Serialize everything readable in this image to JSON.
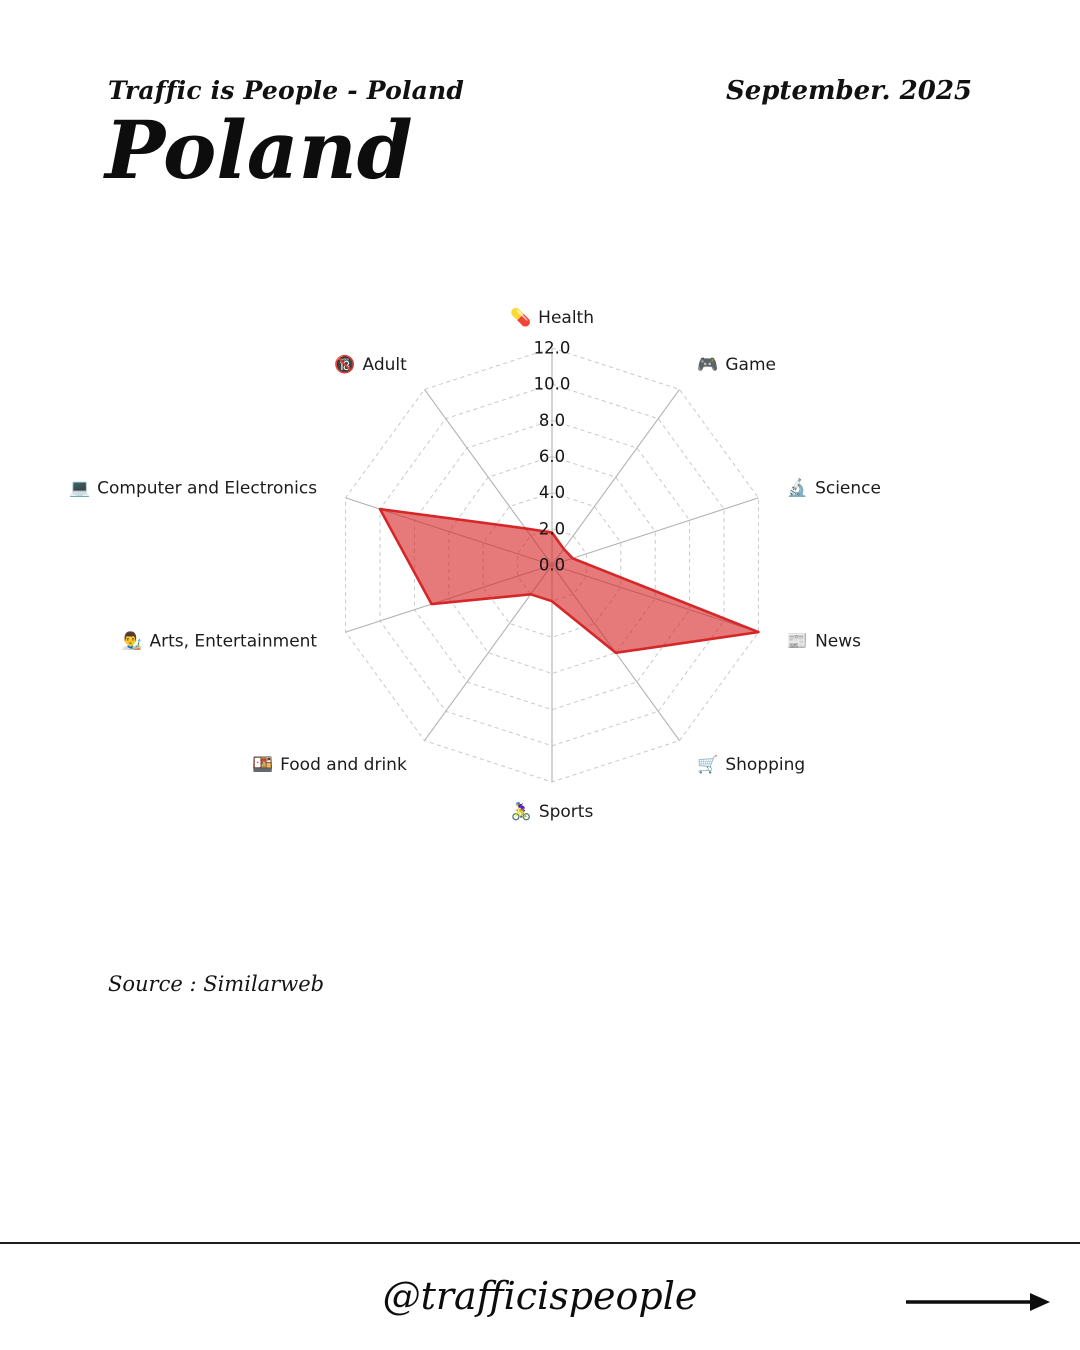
{
  "header": {
    "eyebrow": "Traffic is People - Poland",
    "date": "September. 2025",
    "title": "Poland"
  },
  "source_note": "Source : Similarweb",
  "footer": {
    "handle": "@trafficispeople",
    "arrow_icon_name": "right-arrow"
  },
  "chart_data": {
    "type": "radar",
    "title": "Traffic share by category, Poland",
    "axis_min": 0,
    "axis_max": 12,
    "tick_step": 2,
    "tick_labels": [
      "0.0",
      "2.0",
      "4.0",
      "6.0",
      "8.0",
      "10.0",
      "12.0"
    ],
    "grid": "dashed concentric decagon rings with solid gray spokes",
    "legend": "none",
    "fill_color": "#d62728",
    "fill_opacity": 0.62,
    "stroke_color": "#d62728",
    "categories": [
      {
        "icon": "💊",
        "label": "Health",
        "value": 1.8
      },
      {
        "icon": "🎮",
        "label": "Game",
        "value": 1.1
      },
      {
        "icon": "🔬",
        "label": "Science",
        "value": 1.2
      },
      {
        "icon": "📰",
        "label": "News",
        "value": 12.0
      },
      {
        "icon": "🛒",
        "label": "Shopping",
        "value": 6.0
      },
      {
        "icon": "🚴‍♀️",
        "label": "Sports",
        "value": 2.0
      },
      {
        "icon": "🍱",
        "label": "Food and drink",
        "value": 2.0
      },
      {
        "icon": "👨‍🎨",
        "label": "Arts, Entertainment",
        "value": 7.0
      },
      {
        "icon": "💻",
        "label": "Computer and Electronics",
        "value": 10.0
      },
      {
        "icon": "🔞",
        "label": "Adult",
        "value": 2.5
      }
    ]
  }
}
